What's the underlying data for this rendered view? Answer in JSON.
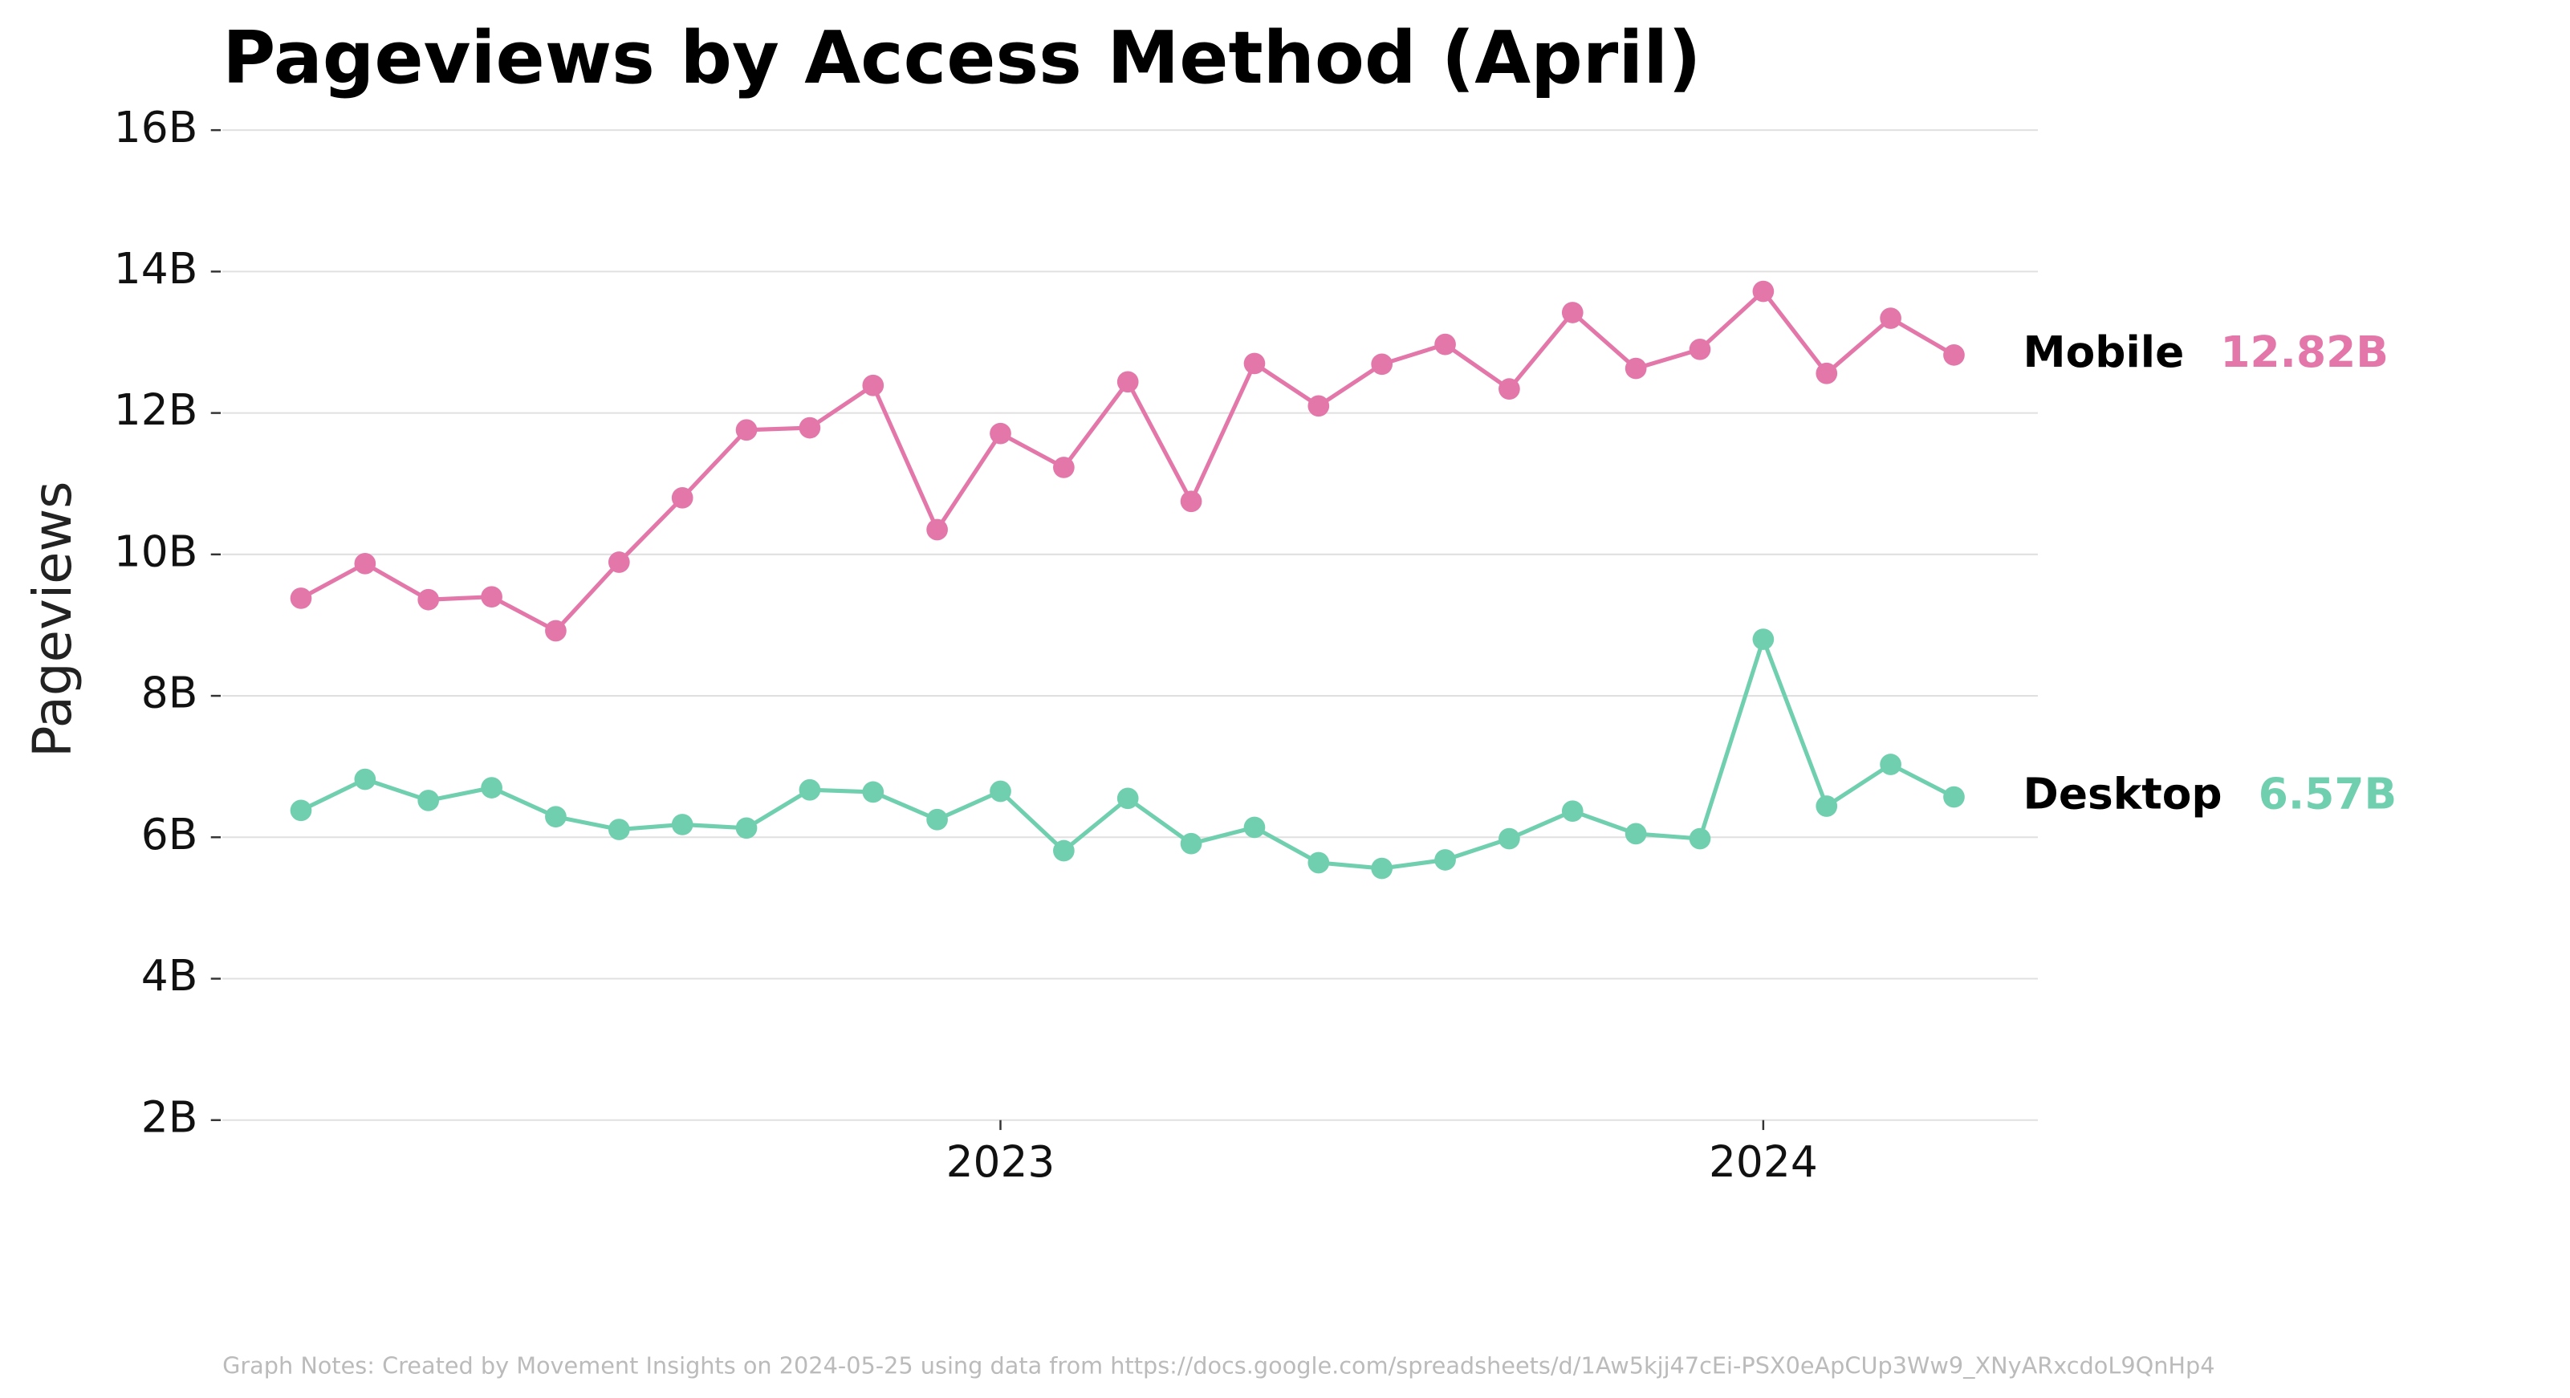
{
  "chart_data": {
    "type": "line",
    "title": "Pageviews by Access Method (April)",
    "ylabel": "Pageviews",
    "note": "Graph Notes: Created by Movement Insights  on 2024-05-25 using data from https://docs.google.com/spreadsheets/d/1Aw5kjj47cEi-PSX0eApCUp3Ww9_XNyARxcdoL9QnHp4",
    "x": [
      2022.083,
      2022.167,
      2022.25,
      2022.333,
      2022.417,
      2022.5,
      2022.583,
      2022.667,
      2022.75,
      2022.833,
      2022.917,
      2023.0,
      2023.083,
      2023.167,
      2023.25,
      2023.333,
      2023.417,
      2023.5,
      2023.583,
      2023.667,
      2023.75,
      2023.833,
      2023.917,
      2024.0,
      2024.083,
      2024.167,
      2024.25
    ],
    "xlim": [
      2021.98,
      2024.36
    ],
    "xticks": [
      2023,
      2024
    ],
    "ylim": [
      2,
      16
    ],
    "yticks": [
      {
        "value": 2,
        "label": "2B"
      },
      {
        "value": 4,
        "label": "4B"
      },
      {
        "value": 6,
        "label": "6B"
      },
      {
        "value": 8,
        "label": "8B"
      },
      {
        "value": 10,
        "label": "10B"
      },
      {
        "value": 12,
        "label": "12B"
      },
      {
        "value": 14,
        "label": "14B"
      },
      {
        "value": 16,
        "label": "16B"
      }
    ],
    "grid": true,
    "series": [
      {
        "name": "Mobile",
        "color": "#e377a9",
        "last_label": "12.82B",
        "values": [
          9.38,
          9.87,
          9.36,
          9.4,
          8.92,
          9.89,
          10.8,
          11.76,
          11.79,
          12.39,
          10.35,
          11.71,
          11.23,
          12.44,
          10.75,
          12.7,
          12.1,
          12.69,
          12.97,
          12.34,
          13.42,
          12.63,
          12.9,
          13.72,
          12.56,
          13.34,
          12.82
        ]
      },
      {
        "name": "Desktop",
        "color": "#6fcfae",
        "last_label": "6.57B",
        "values": [
          6.38,
          6.82,
          6.52,
          6.7,
          6.29,
          6.11,
          6.18,
          6.13,
          6.67,
          6.64,
          6.25,
          6.65,
          5.81,
          6.55,
          5.91,
          6.14,
          5.64,
          5.56,
          5.68,
          5.98,
          6.37,
          6.05,
          5.98,
          8.8,
          6.44,
          7.03,
          6.57
        ]
      }
    ]
  }
}
